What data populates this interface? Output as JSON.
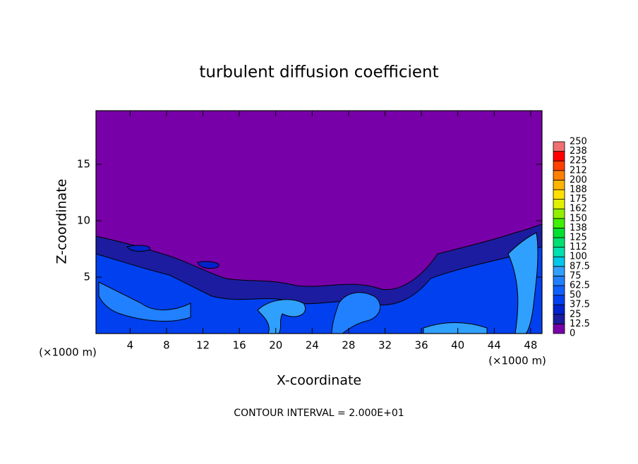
{
  "chart_data": {
    "type": "contour",
    "title": "turbulent diffusion coefficient",
    "x_label": "X-coordinate",
    "y_label": "Z-coordinate",
    "x_unit_label": "(×1000 m)",
    "y_unit_label": "(×1000 m)",
    "footer": "CONTOUR INTERVAL = 2.000E+01",
    "xlim": [
      0.25,
      49.25
    ],
    "ylim": [
      0,
      19.75
    ],
    "xticks": [
      4,
      8,
      12,
      16,
      20,
      24,
      28,
      32,
      36,
      40,
      44,
      48
    ],
    "yticks": [
      5,
      10,
      15
    ],
    "colorbar": {
      "levels": [
        0,
        12.5,
        25,
        37.5,
        50,
        62.5,
        75,
        87.5,
        100,
        {
          "value": 112.5,
          "label": "112"
        },
        125,
        {
          "value": 137.5,
          "label": "138"
        },
        150,
        {
          "value": 162.5,
          "label": "162"
        },
        175,
        {
          "value": 187.5,
          "label": "188"
        },
        200,
        {
          "value": 212.5,
          "label": "212"
        },
        225,
        {
          "value": 237.5,
          "label": "238"
        },
        250
      ],
      "colors": [
        "#7800a8",
        "#1c1ca0",
        "#0022cc",
        "#0040ee",
        "#1060ff",
        "#2080ff",
        "#30a0ff",
        "#00c8e8",
        "#00e0b0",
        "#00e070",
        "#00e030",
        "#40f000",
        "#90f000",
        "#e0f000",
        "#ffe000",
        "#ffb400",
        "#ff8000",
        "#ff4000",
        "#ff0000",
        "#f07070"
      ]
    }
  }
}
